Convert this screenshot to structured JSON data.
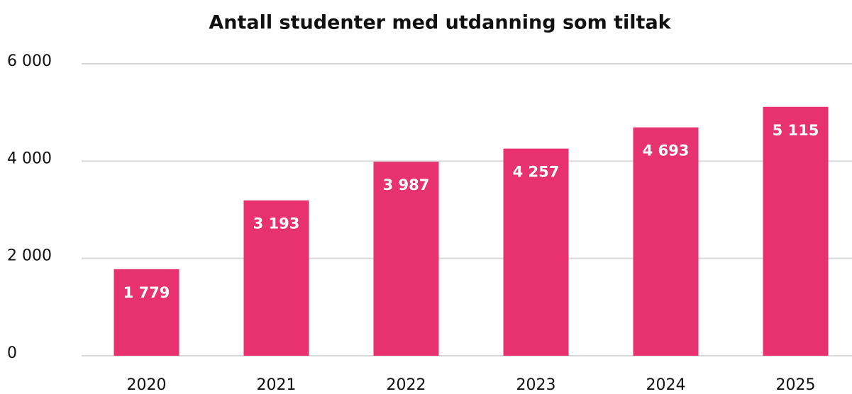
{
  "chart_data": {
    "type": "bar",
    "title": "Antall studenter med utdanning som tiltak",
    "categories": [
      "2020",
      "2021",
      "2022",
      "2023",
      "2024",
      "2025"
    ],
    "values": [
      1779,
      3193,
      3987,
      4257,
      4693,
      5115
    ],
    "value_labels": [
      "1 779",
      "3 193",
      "3 987",
      "4 257",
      "4 693",
      "5 115"
    ],
    "color": "#e8316f",
    "ylim": [
      0,
      6000
    ],
    "yticks": [
      0,
      {
        "value": 2000,
        "label": "2 000"
      },
      {
        "value": 4000,
        "label": "4 000"
      },
      {
        "value": 6000,
        "label": "6 000"
      }
    ],
    "grid": true
  }
}
